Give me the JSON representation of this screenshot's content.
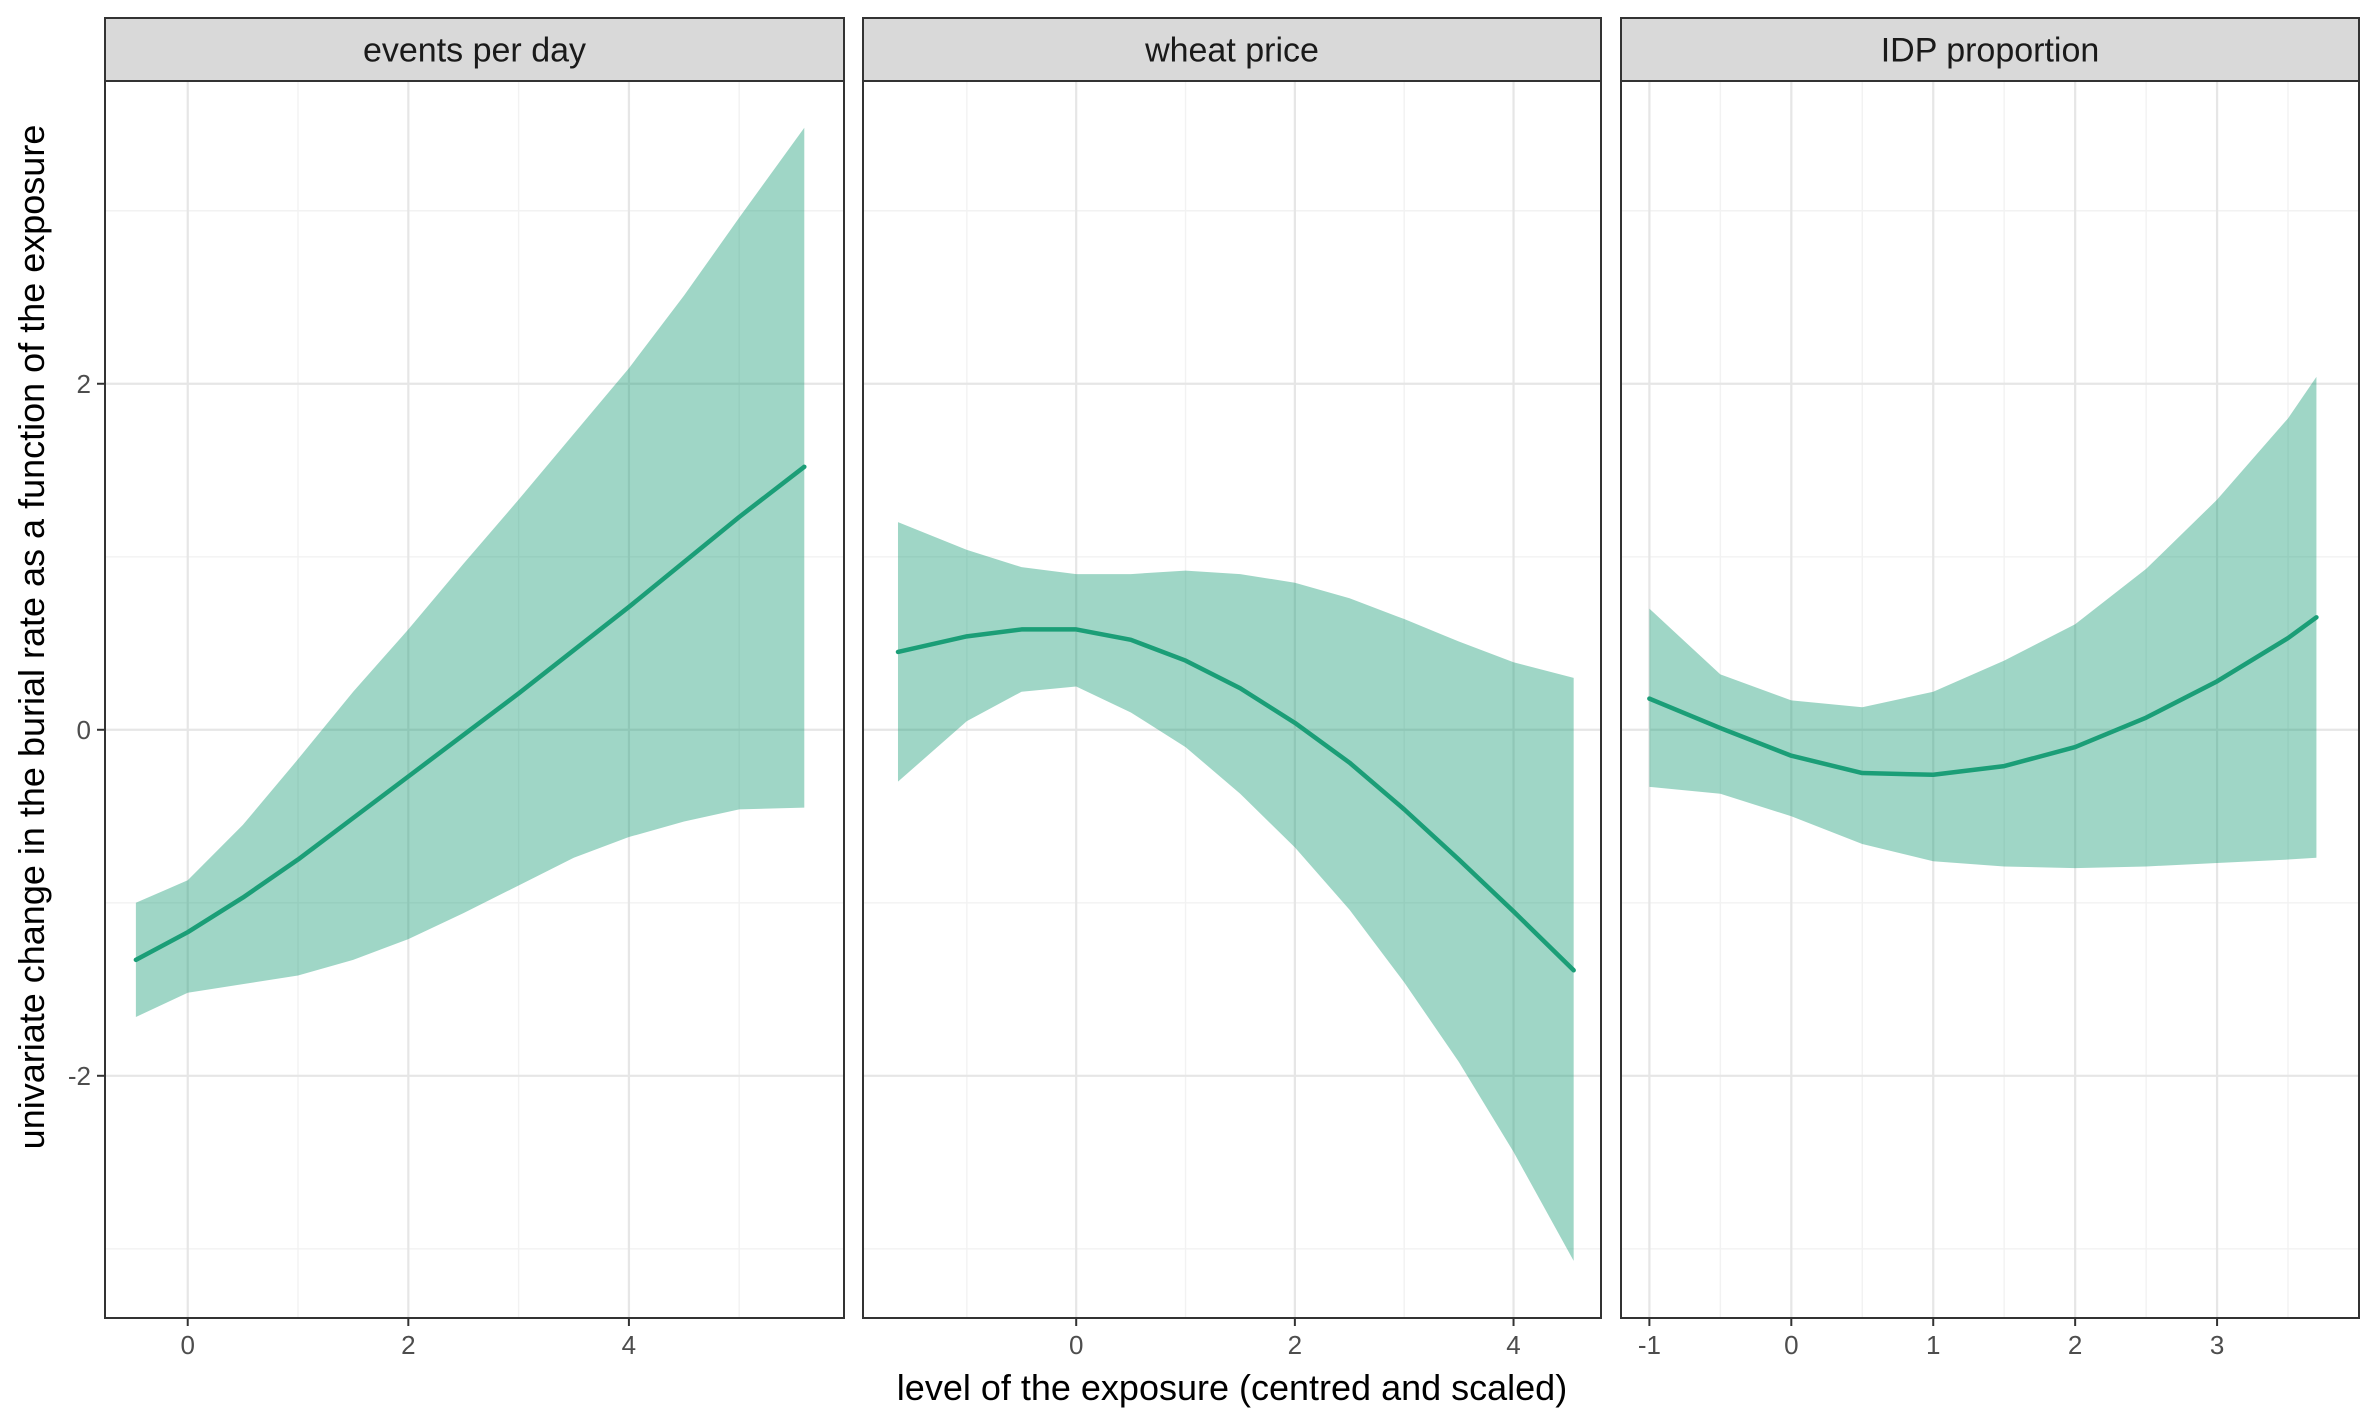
{
  "chart_data": {
    "type": "line",
    "xlabel": "level of the exposure (centred and scaled)",
    "ylabel": "univariate change in the burial rate as a function of the exposure",
    "ylim": [
      -3.4,
      3.75
    ],
    "y_ticks": [
      -2,
      0,
      2
    ],
    "grid": true,
    "colors": {
      "line": "#1b9e77",
      "ribbon": "#1b9e77",
      "strip": "#d9d9d9"
    },
    "panels": [
      {
        "title": "events per day",
        "xlim": [
          -0.75,
          5.95
        ],
        "x_ticks": [
          0,
          2,
          4
        ],
        "x": [
          -0.47,
          0.0,
          0.5,
          1.0,
          1.5,
          2.0,
          2.5,
          3.0,
          3.5,
          4.0,
          4.5,
          5.0,
          5.59
        ],
        "fit": [
          -1.33,
          -1.17,
          -0.97,
          -0.75,
          -0.51,
          -0.27,
          -0.03,
          0.21,
          0.46,
          0.71,
          0.97,
          1.23,
          1.52
        ],
        "lower": [
          -1.66,
          -1.52,
          -1.47,
          -1.42,
          -1.33,
          -1.21,
          -1.06,
          -0.9,
          -0.74,
          -0.62,
          -0.53,
          -0.46,
          -0.45
        ],
        "upper": [
          -1.0,
          -0.87,
          -0.55,
          -0.17,
          0.22,
          0.58,
          0.96,
          1.33,
          1.71,
          2.09,
          2.51,
          2.96,
          3.48
        ]
      },
      {
        "title": "wheat price",
        "xlim": [
          -1.95,
          4.8
        ],
        "x_ticks": [
          0,
          2,
          4
        ],
        "x": [
          -1.63,
          -1.0,
          -0.5,
          0.0,
          0.5,
          1.0,
          1.5,
          2.0,
          2.5,
          3.0,
          3.5,
          4.0,
          4.55
        ],
        "fit": [
          0.45,
          0.54,
          0.58,
          0.58,
          0.52,
          0.4,
          0.24,
          0.04,
          -0.19,
          -0.46,
          -0.75,
          -1.05,
          -1.39
        ],
        "lower": [
          -0.3,
          0.05,
          0.22,
          0.25,
          0.1,
          -0.1,
          -0.37,
          -0.68,
          -1.04,
          -1.46,
          -1.92,
          -2.44,
          -3.07
        ],
        "upper": [
          1.2,
          1.04,
          0.94,
          0.9,
          0.9,
          0.92,
          0.9,
          0.85,
          0.76,
          0.64,
          0.51,
          0.39,
          0.3
        ]
      },
      {
        "title": "IDP proportion",
        "xlim": [
          -1.2,
          4.0
        ],
        "x_ticks": [
          -1,
          0,
          1,
          2,
          3
        ],
        "x": [
          -1.0,
          -0.5,
          0.0,
          0.5,
          1.0,
          1.5,
          2.0,
          2.5,
          3.0,
          3.5,
          3.7
        ],
        "fit": [
          0.18,
          0.01,
          -0.15,
          -0.25,
          -0.26,
          -0.21,
          -0.1,
          0.07,
          0.28,
          0.53,
          0.65
        ],
        "lower": [
          -0.33,
          -0.37,
          -0.5,
          -0.66,
          -0.76,
          -0.79,
          -0.8,
          -0.79,
          -0.77,
          -0.75,
          -0.74
        ],
        "upper": [
          0.7,
          0.32,
          0.17,
          0.13,
          0.22,
          0.4,
          0.61,
          0.93,
          1.33,
          1.8,
          2.04
        ]
      }
    ]
  }
}
